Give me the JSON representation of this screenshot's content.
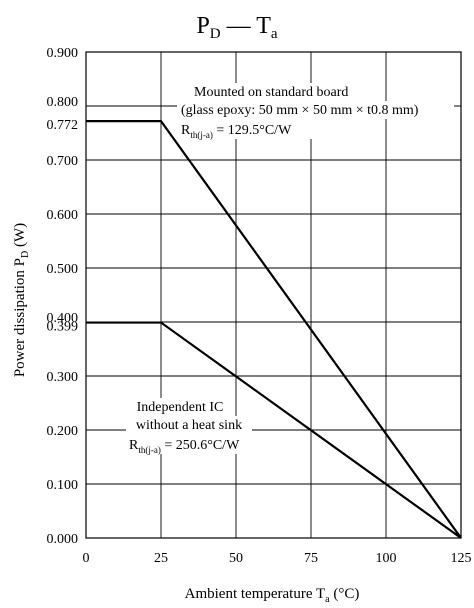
{
  "chart_data": {
    "type": "line",
    "title": {
      "main": "P",
      "main_sub": "D",
      "dash": " — ",
      "second": "T",
      "second_sub": "a"
    },
    "xlabel": {
      "text": "Ambient temperature  T",
      "sub": "a",
      "unit": "  (°C)"
    },
    "ylabel": {
      "text": "Power dissipation  P",
      "sub": "D",
      "unit": "  (W)"
    },
    "xlim": [
      0,
      125
    ],
    "ylim": [
      0,
      0.9
    ],
    "grid": true,
    "x_ticks": [
      {
        "value": 0,
        "label": "0"
      },
      {
        "value": 25,
        "label": "25"
      },
      {
        "value": 50,
        "label": "50"
      },
      {
        "value": 75,
        "label": "75"
      },
      {
        "value": 100,
        "label": "100"
      },
      {
        "value": 125,
        "label": "125"
      }
    ],
    "y_ticks": [
      {
        "value": 0.0,
        "label": "0.000"
      },
      {
        "value": 0.1,
        "label": "0.100"
      },
      {
        "value": 0.2,
        "label": "0.200"
      },
      {
        "value": 0.3,
        "label": "0.300"
      },
      {
        "value": 0.399,
        "label": "0.399"
      },
      {
        "value": 0.4,
        "label": "0.400"
      },
      {
        "value": 0.5,
        "label": "0.500"
      },
      {
        "value": 0.6,
        "label": "0.600"
      },
      {
        "value": 0.7,
        "label": "0.700"
      },
      {
        "value": 0.772,
        "label": "0.772"
      },
      {
        "value": 0.8,
        "label": "0.800"
      },
      {
        "value": 0.9,
        "label": "0.900"
      }
    ],
    "series": [
      {
        "x": [
          0,
          25,
          125
        ],
        "y": [
          0.772,
          0.772,
          0.0
        ]
      },
      {
        "x": [
          0,
          25,
          125
        ],
        "y": [
          0.399,
          0.399,
          0.0
        ]
      }
    ],
    "annotations": {
      "board": {
        "line1": "Mounted on standard board",
        "line2": "(glass epoxy: 50 mm × 50 mm × t0.8 mm)",
        "rth_main": "R",
        "rth_sub": "th(j-a)",
        "rth_value": " = 129.5°C/W"
      },
      "ic": {
        "line1": "Independent IC",
        "line2": "without a heat sink",
        "rth_main": "R",
        "rth_sub": "th(j-a)",
        "rth_value": " = 250.6°C/W"
      }
    }
  }
}
